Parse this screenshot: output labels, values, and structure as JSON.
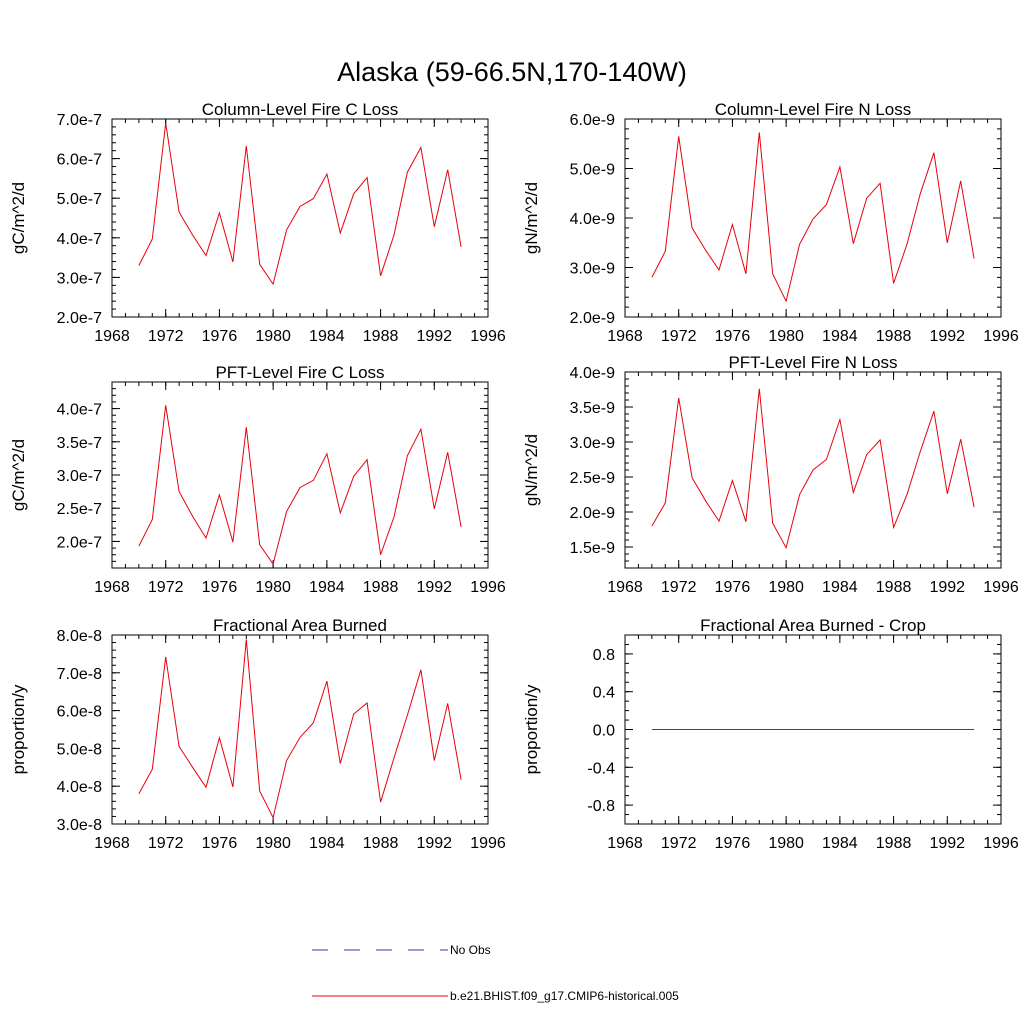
{
  "figure": {
    "title": "Alaska (59-66.5N,170-140W)",
    "line_color": "#e8000b",
    "obs_color": "#3a3a9a"
  },
  "legend": {
    "obs_label": "No Obs",
    "model_label": "b.e21.BHIST.f09_g17.CMIP6-historical.005"
  },
  "chart_data": [
    {
      "type": "line",
      "title": "Column-Level Fire C Loss",
      "ylabel": "gC/m^2/d",
      "xlim": [
        1968,
        1996
      ],
      "ylim": [
        2e-07,
        7e-07
      ],
      "xticks": [
        1968,
        1972,
        1976,
        1980,
        1984,
        1988,
        1992,
        1996
      ],
      "xtick_labels": [
        "1968",
        "1972",
        "1976",
        "1980",
        "1984",
        "1988",
        "1992",
        "1996"
      ],
      "yticks": [
        2e-07,
        3e-07,
        4e-07,
        5e-07,
        6e-07,
        7e-07
      ],
      "ytick_labels": [
        "2.0e-7",
        "3.0e-7",
        "4.0e-7",
        "5.0e-7",
        "6.0e-7",
        "7.0e-7"
      ],
      "yminor": 2e-08,
      "x": [
        1970,
        1971,
        1972,
        1973,
        1974,
        1975,
        1976,
        1977,
        1978,
        1979,
        1980,
        1981,
        1982,
        1983,
        1984,
        1985,
        1986,
        1987,
        1988,
        1989,
        1990,
        1991,
        1992,
        1993,
        1994
      ],
      "series": [
        {
          "name": "b.e21.BHIST.f09_g17.CMIP6-historical.005",
          "values": [
            3.3e-07,
            3.97e-07,
            6.9e-07,
            4.65e-07,
            4.07e-07,
            3.55e-07,
            4.63e-07,
            3.39e-07,
            6.32e-07,
            3.33e-07,
            2.83e-07,
            4.2e-07,
            4.79e-07,
            4.99e-07,
            5.61e-07,
            4.12e-07,
            5.11e-07,
            5.52e-07,
            3.04e-07,
            4.07e-07,
            5.66e-07,
            6.28e-07,
            4.28e-07,
            5.72e-07,
            3.77e-07
          ]
        }
      ]
    },
    {
      "type": "line",
      "title": "Column-Level Fire N Loss",
      "ylabel": "gN/m^2/d",
      "xlim": [
        1968,
        1996
      ],
      "ylim": [
        2e-09,
        6e-09
      ],
      "xticks": [
        1968,
        1972,
        1976,
        1980,
        1984,
        1988,
        1992,
        1996
      ],
      "xtick_labels": [
        "1968",
        "1972",
        "1976",
        "1980",
        "1984",
        "1988",
        "1992",
        "1996"
      ],
      "yticks": [
        2e-09,
        3e-09,
        4e-09,
        5e-09,
        6e-09
      ],
      "ytick_labels": [
        "2.0e-9",
        "3.0e-9",
        "4.0e-9",
        "5.0e-9",
        "6.0e-9"
      ],
      "yminor": 2e-10,
      "x": [
        1970,
        1971,
        1972,
        1973,
        1974,
        1975,
        1976,
        1977,
        1978,
        1979,
        1980,
        1981,
        1982,
        1983,
        1984,
        1985,
        1986,
        1987,
        1988,
        1989,
        1990,
        1991,
        1992,
        1993,
        1994
      ],
      "series": [
        {
          "name": "b.e21.BHIST.f09_g17.CMIP6-historical.005",
          "values": [
            2.8e-09,
            3.33e-09,
            5.65e-09,
            3.8e-09,
            3.35e-09,
            2.95e-09,
            3.87e-09,
            2.87e-09,
            5.73e-09,
            2.87e-09,
            2.32e-09,
            3.47e-09,
            3.98e-09,
            4.27e-09,
            5.03e-09,
            3.48e-09,
            4.4e-09,
            4.7e-09,
            2.68e-09,
            3.47e-09,
            4.5e-09,
            5.32e-09,
            3.5e-09,
            4.75e-09,
            3.18e-09
          ]
        }
      ]
    },
    {
      "type": "line",
      "title": "PFT-Level Fire C Loss",
      "ylabel": "gC/m^2/d",
      "xlim": [
        1968,
        1996
      ],
      "ylim": [
        1.6e-07,
        4.4e-07
      ],
      "xticks": [
        1968,
        1972,
        1976,
        1980,
        1984,
        1988,
        1992,
        1996
      ],
      "xtick_labels": [
        "1968",
        "1972",
        "1976",
        "1980",
        "1984",
        "1988",
        "1992",
        "1996"
      ],
      "yticks": [
        2e-07,
        2.5e-07,
        3e-07,
        3.5e-07,
        4e-07
      ],
      "ytick_labels": [
        "2.0e-7",
        "2.5e-7",
        "3.0e-7",
        "3.5e-7",
        "4.0e-7"
      ],
      "yminor": 1e-08,
      "x": [
        1970,
        1971,
        1972,
        1973,
        1974,
        1975,
        1976,
        1977,
        1978,
        1979,
        1980,
        1981,
        1982,
        1983,
        1984,
        1985,
        1986,
        1987,
        1988,
        1989,
        1990,
        1991,
        1992,
        1993,
        1994
      ],
      "series": [
        {
          "name": "b.e21.BHIST.f09_g17.CMIP6-historical.005",
          "values": [
            1.93e-07,
            2.33e-07,
            4.05e-07,
            2.75e-07,
            2.38e-07,
            2.05e-07,
            2.7e-07,
            1.99e-07,
            3.72e-07,
            1.95e-07,
            1.66e-07,
            2.45e-07,
            2.81e-07,
            2.92e-07,
            3.32e-07,
            2.43e-07,
            2.98e-07,
            3.23e-07,
            1.8e-07,
            2.37e-07,
            3.29e-07,
            3.69e-07,
            2.49e-07,
            3.34e-07,
            2.22e-07
          ]
        }
      ]
    },
    {
      "type": "line",
      "title": "PFT-Level Fire N Loss",
      "ylabel": "gN/m^2/d",
      "xlim": [
        1968,
        1996
      ],
      "ylim": [
        1.2e-09,
        4e-09
      ],
      "xticks": [
        1968,
        1972,
        1976,
        1980,
        1984,
        1988,
        1992,
        1996
      ],
      "xtick_labels": [
        "1968",
        "1972",
        "1976",
        "1980",
        "1984",
        "1988",
        "1992",
        "1996"
      ],
      "yticks": [
        1.5e-09,
        2e-09,
        2.5e-09,
        3e-09,
        3.5e-09,
        4e-09
      ],
      "ytick_labels": [
        "1.5e-9",
        "2.0e-9",
        "2.5e-9",
        "3.0e-9",
        "3.5e-9",
        "4.0e-9"
      ],
      "yminor": 1e-10,
      "x": [
        1970,
        1971,
        1972,
        1973,
        1974,
        1975,
        1976,
        1977,
        1978,
        1979,
        1980,
        1981,
        1982,
        1983,
        1984,
        1985,
        1986,
        1987,
        1988,
        1989,
        1990,
        1991,
        1992,
        1993,
        1994
      ],
      "series": [
        {
          "name": "b.e21.BHIST.f09_g17.CMIP6-historical.005",
          "values": [
            1.8e-09,
            2.13e-09,
            3.63e-09,
            2.49e-09,
            2.16e-09,
            1.87e-09,
            2.45e-09,
            1.86e-09,
            3.76e-09,
            1.84e-09,
            1.49e-09,
            2.25e-09,
            2.6e-09,
            2.75e-09,
            3.32e-09,
            2.28e-09,
            2.82e-09,
            3.03e-09,
            1.78e-09,
            2.25e-09,
            2.87e-09,
            3.44e-09,
            2.26e-09,
            3.04e-09,
            2.07e-09
          ]
        }
      ]
    },
    {
      "type": "line",
      "title": "Fractional Area Burned",
      "ylabel": "proportion/y",
      "xlim": [
        1968,
        1996
      ],
      "ylim": [
        3e-08,
        8e-08
      ],
      "xticks": [
        1968,
        1972,
        1976,
        1980,
        1984,
        1988,
        1992,
        1996
      ],
      "xtick_labels": [
        "1968",
        "1972",
        "1976",
        "1980",
        "1984",
        "1988",
        "1992",
        "1996"
      ],
      "yticks": [
        3e-08,
        4e-08,
        5e-08,
        6e-08,
        7e-08,
        8e-08
      ],
      "ytick_labels": [
        "3.0e-8",
        "4.0e-8",
        "5.0e-8",
        "6.0e-8",
        "7.0e-8",
        "8.0e-8"
      ],
      "yminor": 2e-09,
      "x": [
        1970,
        1971,
        1972,
        1973,
        1974,
        1975,
        1976,
        1977,
        1978,
        1979,
        1980,
        1981,
        1982,
        1983,
        1984,
        1985,
        1986,
        1987,
        1988,
        1989,
        1990,
        1991,
        1992,
        1993,
        1994
      ],
      "series": [
        {
          "name": "b.e21.BHIST.f09_g17.CMIP6-historical.005",
          "values": [
            3.8e-08,
            4.45e-08,
            7.42e-08,
            5.05e-08,
            4.5e-08,
            3.97e-08,
            5.28e-08,
            3.98e-08,
            7.88e-08,
            3.87e-08,
            3.17e-08,
            4.68e-08,
            5.29e-08,
            5.68e-08,
            6.78e-08,
            4.6e-08,
            5.91e-08,
            6.2e-08,
            3.58e-08,
            4.75e-08,
            5.88e-08,
            7.08e-08,
            4.68e-08,
            6.19e-08,
            4.17e-08
          ]
        }
      ]
    },
    {
      "type": "line",
      "title": "Fractional Area Burned - Crop",
      "ylabel": "proportion/y",
      "xlim": [
        1968,
        1996
      ],
      "ylim": [
        -1.0,
        1.0
      ],
      "xticks": [
        1968,
        1972,
        1976,
        1980,
        1984,
        1988,
        1992,
        1996
      ],
      "xtick_labels": [
        "1968",
        "1972",
        "1976",
        "1980",
        "1984",
        "1988",
        "1992",
        "1996"
      ],
      "yticks": [
        -0.8,
        -0.4,
        0.0,
        0.4,
        0.8
      ],
      "ytick_labels": [
        "-0.8",
        "-0.4",
        "0.0",
        "0.4",
        "0.8"
      ],
      "yminor": 0.1,
      "x": [
        1970,
        1971,
        1972,
        1973,
        1974,
        1975,
        1976,
        1977,
        1978,
        1979,
        1980,
        1981,
        1982,
        1983,
        1984,
        1985,
        1986,
        1987,
        1988,
        1989,
        1990,
        1991,
        1992,
        1993,
        1994
      ],
      "series": [
        {
          "name": "b.e21.BHIST.f09_g17.CMIP6-historical.005",
          "values": [
            0,
            0,
            0,
            0,
            0,
            0,
            0,
            0,
            0,
            0,
            0,
            0,
            0,
            0,
            0,
            0,
            0,
            0,
            0,
            0,
            0,
            0,
            0,
            0,
            0
          ]
        }
      ]
    }
  ]
}
